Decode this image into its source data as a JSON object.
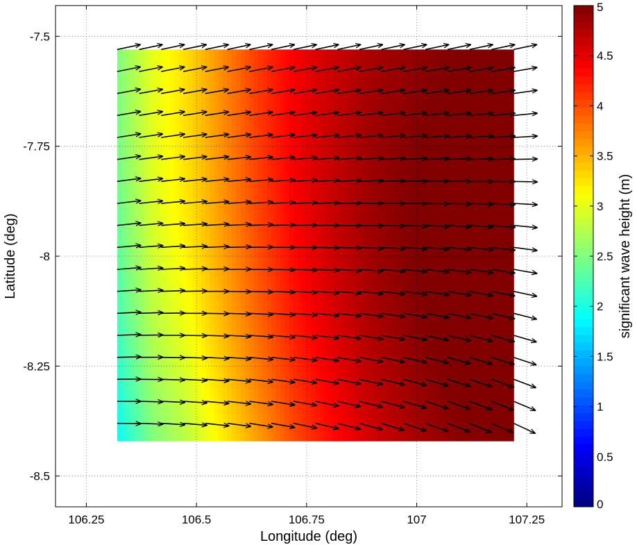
{
  "chart_data": {
    "type": "heatmap",
    "subtype": "quiver over filled field",
    "title": "",
    "xlabel": "Longitude (deg)",
    "ylabel": "Latitude (deg)",
    "xlim": [
      106.18,
      107.33
    ],
    "ylim": [
      -8.57,
      -7.43
    ],
    "x_ticks": [
      106.25,
      106.5,
      106.75,
      107,
      107.25
    ],
    "x_tick_labels": [
      "106.25",
      "106.5",
      "106.75",
      "107",
      "107.25"
    ],
    "y_ticks": [
      -7.5,
      -7.75,
      -8,
      -8.25,
      -8.5
    ],
    "y_tick_labels": [
      "-7.5",
      "-7.75",
      "-8",
      "-8.25",
      "-8.5"
    ],
    "grid": true,
    "grid_style": "dotted",
    "field": {
      "name": "significant wave height",
      "units": "m",
      "lon_range": [
        106.32,
        107.22
      ],
      "lat_range": [
        -8.42,
        -7.53
      ],
      "lon_profile": [
        106.32,
        106.4,
        106.48,
        106.56,
        106.64,
        106.72,
        106.8,
        106.9,
        107.0,
        107.1,
        107.22
      ],
      "hs_north_row": [
        2.5,
        3.0,
        3.3,
        3.7,
        4.1,
        4.4,
        4.6,
        4.8,
        4.9,
        5.0,
        5.0
      ],
      "hs_south_row": [
        1.9,
        2.5,
        2.8,
        3.2,
        3.6,
        4.0,
        4.3,
        4.6,
        4.8,
        4.95,
        5.0
      ]
    },
    "arrows": {
      "grid_lon": {
        "start": 106.32,
        "step": 0.05,
        "count": 19
      },
      "grid_lat": {
        "start": -7.53,
        "step": -0.05,
        "count": 18
      },
      "direction_deg_north_row": 12,
      "direction_deg_south_row": -25,
      "color": "#000000"
    },
    "colorbar": {
      "label": "significant wave height (m)",
      "min": 0,
      "max": 5,
      "ticks": [
        0,
        0.5,
        1,
        1.5,
        2,
        2.5,
        3,
        3.5,
        4,
        4.5,
        5
      ],
      "tick_labels": [
        "0",
        "0.5",
        "1",
        "1.5",
        "2",
        "2.5",
        "3",
        "3.5",
        "4",
        "4.5",
        "5"
      ],
      "colormap": "jet",
      "levels": 64
    }
  }
}
